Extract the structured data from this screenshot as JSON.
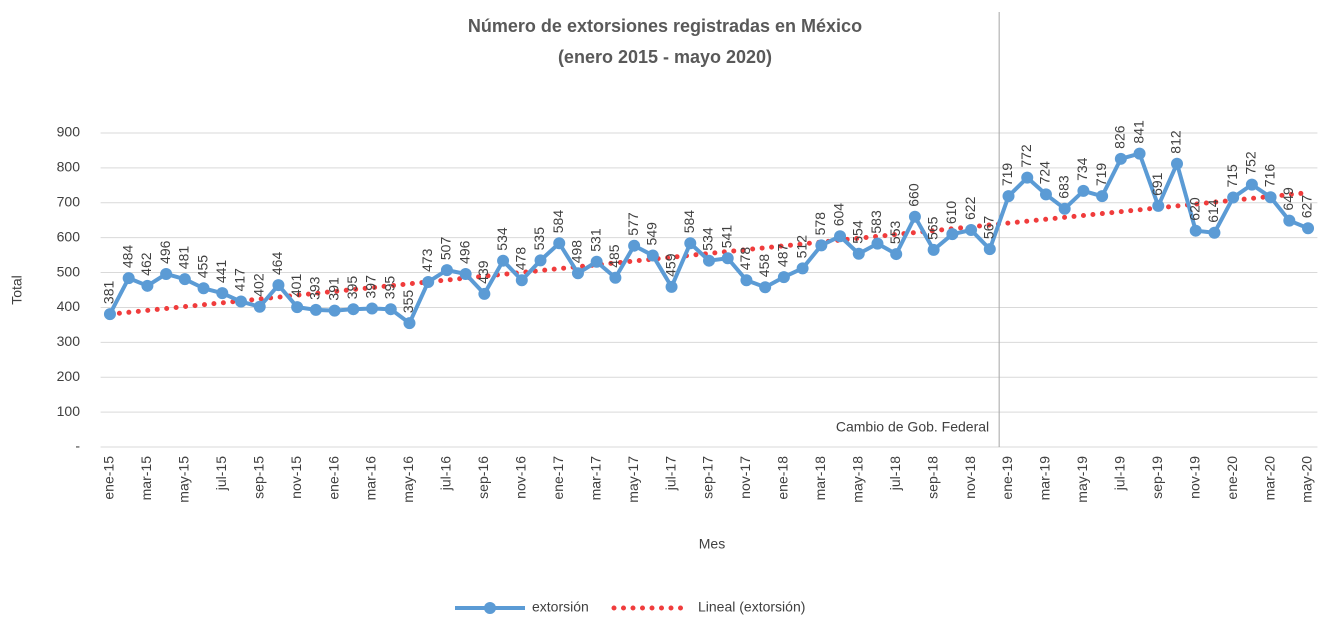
{
  "chart_data": {
    "type": "line",
    "title": [
      "Número de extorsiones registradas en México",
      "(enero 2015 - mayo 2020)"
    ],
    "x_label": "Mes",
    "y_label": "Total",
    "categories": [
      "ene-15",
      null,
      "mar-15",
      null,
      "may-15",
      null,
      "jul-15",
      null,
      "sep-15",
      null,
      "nov-15",
      null,
      "ene-16",
      null,
      "mar-16",
      null,
      "may-16",
      null,
      "jul-16",
      null,
      "sep-16",
      null,
      "nov-16",
      null,
      "ene-17",
      null,
      "mar-17",
      null,
      "may-17",
      null,
      "jul-17",
      null,
      "sep-17",
      null,
      "nov-17",
      null,
      "ene-18",
      null,
      "mar-18",
      null,
      "may-18",
      null,
      "jul-18",
      null,
      "sep-18",
      null,
      "nov-18",
      null,
      "ene-19",
      null,
      "mar-19",
      null,
      "may-19",
      null,
      "jul-19",
      null,
      "sep-19",
      null,
      "nov-19",
      null,
      "ene-20",
      null,
      "mar-20",
      null,
      "may-20"
    ],
    "series": [
      {
        "name": "extorsión",
        "color": "#5b9bd5",
        "values": [
          381,
          484,
          462,
          496,
          481,
          455,
          441,
          417,
          402,
          464,
          401,
          393,
          391,
          395,
          397,
          395,
          355,
          473,
          507,
          496,
          439,
          534,
          478,
          535,
          584,
          498,
          531,
          485,
          577,
          549,
          459,
          584,
          534,
          541,
          478,
          458,
          487,
          512,
          578,
          604,
          554,
          583,
          553,
          660,
          565,
          610,
          622,
          567,
          719,
          772,
          724,
          683,
          734,
          719,
          826,
          841,
          691,
          812,
          620,
          614,
          715,
          752,
          716,
          649,
          627
        ]
      }
    ],
    "trendline": {
      "name": "Lineal (extorsión)",
      "color": "#f03c3c",
      "kind": "linear"
    },
    "annotation": "Cambio de Gob. Federal",
    "ylim": [
      0,
      900
    ],
    "yticks": [
      {
        "value": 0,
        "label": "-"
      },
      100,
      200,
      300,
      400,
      500,
      600,
      700,
      800,
      900
    ],
    "grid": true
  }
}
